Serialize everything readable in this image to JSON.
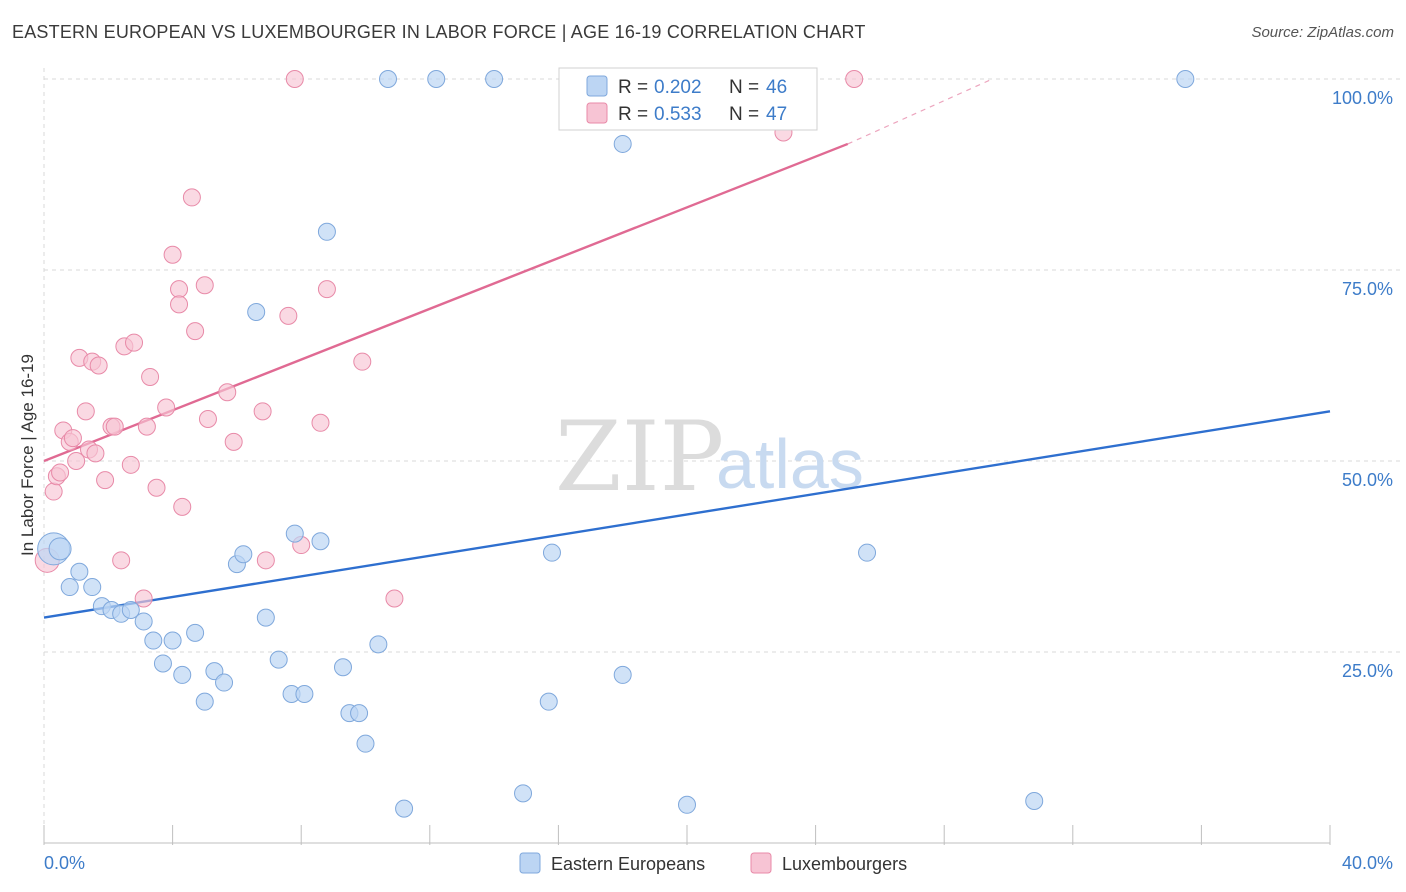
{
  "header": {
    "title": "EASTERN EUROPEAN VS LUXEMBOURGER IN LABOR FORCE | AGE 16-19 CORRELATION CHART",
    "source": "Source: ZipAtlas.com"
  },
  "watermark": {
    "zip": "ZIP",
    "atlas": "atlas"
  },
  "colors": {
    "blue_fill": "#bcd5f3",
    "blue_stroke": "#7fa8dc",
    "blue_line": "#2e6fcf",
    "pink_fill": "#f7c4d4",
    "pink_stroke": "#e88aa8",
    "pink_line": "#e06a93",
    "tick_label": "#3d7cc9",
    "grid": "#d8d8d8"
  },
  "legend": {
    "rows": [
      {
        "r_label": "R = ",
        "r_value": "0.202",
        "n_label": "N = ",
        "n_value": "46"
      },
      {
        "r_label": "R = ",
        "r_value": "0.533",
        "n_label": "N = ",
        "n_value": "47"
      }
    ]
  },
  "chart_data": {
    "type": "scatter",
    "title": "EASTERN EUROPEAN VS LUXEMBOURGER IN LABOR FORCE | AGE 16-19 CORRELATION CHART",
    "xlabel": "",
    "ylabel": "In Labor Force | Age 16-19",
    "xlim": [
      0,
      40
    ],
    "ylim": [
      0,
      102
    ],
    "x_tick_labels": [
      "0.0%",
      "40.0%"
    ],
    "y_ticks": [
      25,
      50,
      75,
      100
    ],
    "y_tick_labels": [
      "25.0%",
      "50.0%",
      "75.0%",
      "100.0%"
    ],
    "grid": true,
    "legend_position": "top-center",
    "series": [
      {
        "name": "Eastern Europeans",
        "r": 0.202,
        "n": 46,
        "trend": {
          "x": [
            0,
            40
          ],
          "y": [
            29.5,
            56.5
          ]
        },
        "points": [
          [
            0.3,
            38.5
          ],
          [
            0.5,
            38.5
          ],
          [
            0.8,
            33.5
          ],
          [
            1.1,
            35.5
          ],
          [
            1.5,
            33.5
          ],
          [
            1.8,
            31
          ],
          [
            2.1,
            30.5
          ],
          [
            2.4,
            30
          ],
          [
            2.7,
            30.5
          ],
          [
            3.1,
            29
          ],
          [
            3.4,
            26.5
          ],
          [
            3.7,
            23.5
          ],
          [
            4.0,
            26.5
          ],
          [
            4.3,
            22
          ],
          [
            4.7,
            27.5
          ],
          [
            5.0,
            18.5
          ],
          [
            5.3,
            22.5
          ],
          [
            5.6,
            21
          ],
          [
            6.0,
            36.5
          ],
          [
            6.2,
            37.8
          ],
          [
            6.6,
            69.5
          ],
          [
            6.9,
            29.5
          ],
          [
            7.3,
            24
          ],
          [
            7.7,
            19.5
          ],
          [
            8.1,
            19.5
          ],
          [
            7.8,
            40.5
          ],
          [
            8.6,
            39.5
          ],
          [
            8.8,
            80
          ],
          [
            9.3,
            23
          ],
          [
            9.5,
            17
          ],
          [
            9.8,
            17
          ],
          [
            10.0,
            13
          ],
          [
            10.4,
            26
          ],
          [
            10.7,
            100
          ],
          [
            11.2,
            4.5
          ],
          [
            12.2,
            100
          ],
          [
            14.0,
            100
          ],
          [
            14.9,
            6.5
          ],
          [
            15.7,
            18.5
          ],
          [
            15.8,
            38
          ],
          [
            18.0,
            91.5
          ],
          [
            18.0,
            22
          ],
          [
            20.0,
            5
          ],
          [
            25.6,
            38
          ],
          [
            30.8,
            5.5
          ],
          [
            35.5,
            100
          ]
        ]
      },
      {
        "name": "Luxembourgers",
        "r": 0.533,
        "n": 47,
        "trend": {
          "x": [
            0,
            25
          ],
          "y": [
            50,
            91.5
          ]
        },
        "trend_dashed": {
          "x": [
            25,
            29.5
          ],
          "y": [
            91.5,
            100
          ]
        },
        "points": [
          [
            0.1,
            37
          ],
          [
            0.3,
            46
          ],
          [
            0.4,
            48
          ],
          [
            0.5,
            48.5
          ],
          [
            0.6,
            54
          ],
          [
            0.8,
            52.5
          ],
          [
            0.9,
            53
          ],
          [
            1.0,
            50
          ],
          [
            1.1,
            63.5
          ],
          [
            1.3,
            56.5
          ],
          [
            1.4,
            51.5
          ],
          [
            1.5,
            63
          ],
          [
            1.6,
            51
          ],
          [
            1.7,
            62.5
          ],
          [
            1.9,
            47.5
          ],
          [
            2.1,
            54.5
          ],
          [
            2.2,
            54.5
          ],
          [
            2.4,
            37
          ],
          [
            2.5,
            65
          ],
          [
            2.7,
            49.5
          ],
          [
            2.8,
            65.5
          ],
          [
            3.1,
            32
          ],
          [
            3.2,
            54.5
          ],
          [
            3.3,
            61
          ],
          [
            3.5,
            46.5
          ],
          [
            3.8,
            57
          ],
          [
            4.0,
            77
          ],
          [
            4.2,
            72.5
          ],
          [
            4.2,
            70.5
          ],
          [
            4.3,
            44
          ],
          [
            4.6,
            84.5
          ],
          [
            4.7,
            67
          ],
          [
            5.0,
            73
          ],
          [
            5.1,
            55.5
          ],
          [
            5.7,
            59
          ],
          [
            5.9,
            52.5
          ],
          [
            6.8,
            56.5
          ],
          [
            6.9,
            37
          ],
          [
            7.6,
            69
          ],
          [
            7.8,
            100
          ],
          [
            8.0,
            39
          ],
          [
            8.6,
            55
          ],
          [
            8.8,
            72.5
          ],
          [
            9.9,
            63
          ],
          [
            10.9,
            32
          ],
          [
            23.0,
            93
          ],
          [
            25.2,
            100
          ]
        ]
      }
    ]
  }
}
